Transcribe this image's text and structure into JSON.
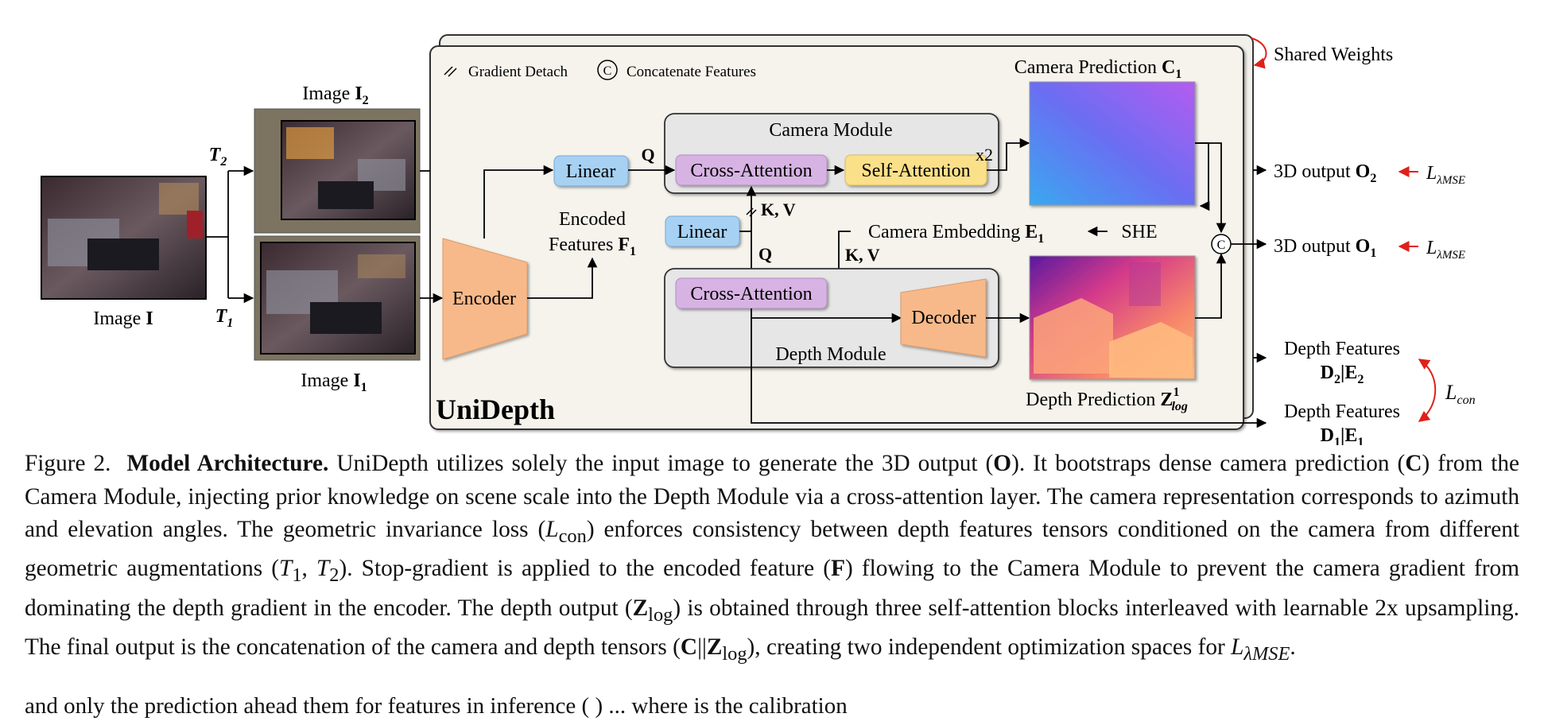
{
  "legend": {
    "gradient_detach": "Gradient Detach",
    "concat_symbol": "C",
    "concatenate": "Concatenate Features"
  },
  "shared_weights": "Shared Weights",
  "unidepth_label": "UniDepth",
  "input": {
    "image_label": "Image ",
    "image_bold": "I",
    "image2_label": "Image ",
    "image2_bold": "I",
    "image2_sub": "2",
    "image1_label": "Image ",
    "image1_bold": "I",
    "image1_sub": "1",
    "t2": "T",
    "t2_sub": "2",
    "t1": "T",
    "t1_sub": "1"
  },
  "blocks": {
    "encoder": "Encoder",
    "decoder": "Decoder",
    "linear_top": "Linear",
    "linear_mid": "Linear",
    "cross_attention_cam": "Cross-Attention",
    "self_attention": "Self-Attention",
    "x2": "x2",
    "cross_attention_depth": "Cross-Attention",
    "camera_module": "Camera Module",
    "depth_module": "Depth Module",
    "she": "SHE"
  },
  "labels": {
    "q_top": "Q",
    "q_mid": "Q",
    "kv_top": "K, V",
    "kv_mid": "K, V",
    "encoded_line1": "Encoded",
    "encoded_line2": "Features ",
    "encoded_bold": "F",
    "encoded_sub": "1",
    "camera_embedding": "Camera Embedding ",
    "camera_embedding_bold": "E",
    "camera_embedding_sub": "1",
    "camera_prediction": "Camera Prediction ",
    "camera_prediction_bold": "C",
    "camera_prediction_sub": "1",
    "depth_prediction": "Depth Prediction ",
    "depth_prediction_bold": "Z",
    "depth_prediction_sup": "1",
    "depth_prediction_sub": "log"
  },
  "outputs": {
    "o2_label": "3D output ",
    "o2_bold": "O",
    "o2_sub": "2",
    "o1_label": "3D output ",
    "o1_bold": "O",
    "o1_sub": "1",
    "loss_symbol": "L",
    "loss_sub": "λMSE",
    "df2_line1": "Depth Features",
    "df2_bold": "D",
    "df2_sub1": "2",
    "df2_bar": "|",
    "df2_bold2": "E",
    "df2_sub2": "2",
    "df1_line1": "Depth Features",
    "df1_bold": "D",
    "df1_sub1": "1",
    "df1_bar": "|",
    "df1_bold2": "E",
    "df1_sub2": "1",
    "lcon_symbol": "L",
    "lcon_sub": "con"
  },
  "caption": {
    "figure_label": "Figure 2.",
    "title": "Model Architecture.",
    "p1": "UniDepth utilizes solely the input image to generate the 3D output (",
    "p1_bold": "O",
    "p2": "). It bootstraps dense camera prediction (",
    "p2_bold": "C",
    "p3": ") from the Camera Module, injecting prior knowledge on scene scale into the Depth Module via a cross-attention layer. The camera representation corresponds to azimuth and elevation angles. The geometric invariance loss (",
    "p3_sym": "L",
    "p3_sub": "con",
    "p4": ") enforces consistency between depth features tensors conditioned on the camera from different geometric augmentations (",
    "p4_t1": "T",
    "p4_t1_sub": "1",
    "p4_sep": ", ",
    "p4_t2": "T",
    "p4_t2_sub": "2",
    "p5": "). Stop-gradient is applied to the encoded feature (",
    "p5_bold": "F",
    "p6": ") flowing to the Camera Module to prevent the camera gradient from dominating the depth gradient in the encoder. The depth output (",
    "p6_bold": "Z",
    "p6_sub": "log",
    "p7": ") is obtained through three self-attention blocks interleaved with learnable 2x upsampling. The final output is the concatenation of the camera and depth tensors (",
    "p7_bold1": "C",
    "p7_bars": "||",
    "p7_bold2": "Z",
    "p7_sub": "log",
    "p8": "), creating two independent optimization spaces for ",
    "p8_sym": "L",
    "p8_sub": "λMSE",
    "p8_end": "."
  },
  "cutoff_text": "and only the prediction ahead them for features in inference ( ) ... where is the calibration"
}
